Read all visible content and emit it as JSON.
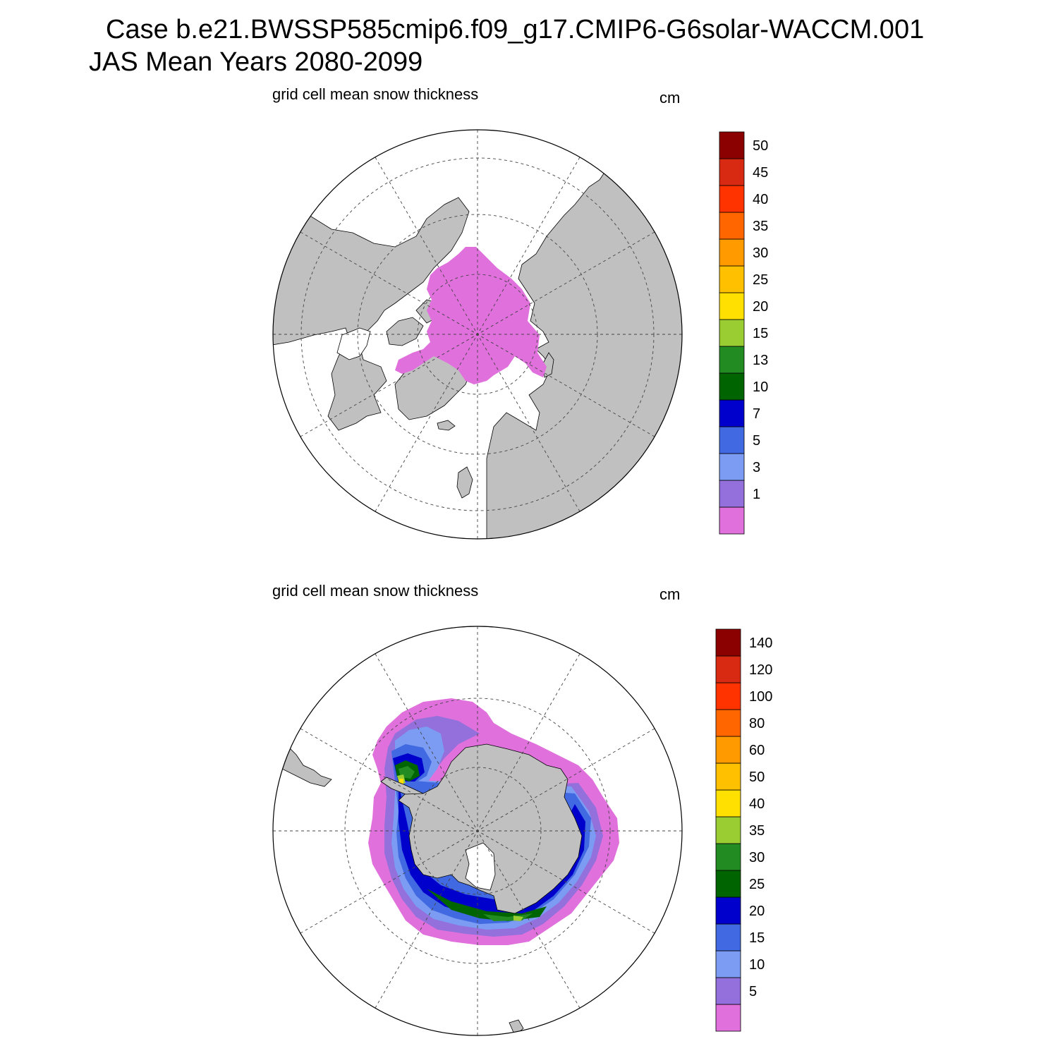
{
  "figure": {
    "title_line1": "Case b.e21.BWSSP585cmip6.f09_g17.CMIP6-G6solar-WACCM.001",
    "title_line2": "JAS Mean   Years 2080-2099"
  },
  "panels": [
    {
      "id": "north",
      "title": "grid cell mean snow thickness",
      "units": "cm",
      "hemisphere": "Northern Hemisphere polar stereographic",
      "colorbar_labels": [
        "1",
        "3",
        "5",
        "7",
        "10",
        "13",
        "15",
        "20",
        "25",
        "30",
        "35",
        "40",
        "45",
        "50"
      ],
      "colorbar_colors": [
        "#e070dc",
        "#9370db",
        "#7b9cf2",
        "#4169e1",
        "#0000cd",
        "#006400",
        "#228b22",
        "#9acd32",
        "#ffe000",
        "#ffc000",
        "#ff9a00",
        "#ff6600",
        "#ff3300",
        "#d82a12",
        "#8b0000"
      ]
    },
    {
      "id": "south",
      "title": "grid cell mean snow thickness",
      "units": "cm",
      "hemisphere": "Southern Hemisphere polar stereographic",
      "colorbar_labels": [
        "5",
        "10",
        "15",
        "20",
        "25",
        "30",
        "35",
        "40",
        "50",
        "60",
        "80",
        "100",
        "120",
        "140"
      ],
      "colorbar_colors": [
        "#e070dc",
        "#9370db",
        "#7b9cf2",
        "#4169e1",
        "#0000cd",
        "#006400",
        "#228b22",
        "#9acd32",
        "#ffe000",
        "#ffc000",
        "#ff9a00",
        "#ff6600",
        "#ff3300",
        "#d82a12",
        "#8b0000"
      ]
    }
  ],
  "colors": {
    "land": "#c0c0c0",
    "ocean": "#ffffff",
    "grid": "#555555"
  }
}
